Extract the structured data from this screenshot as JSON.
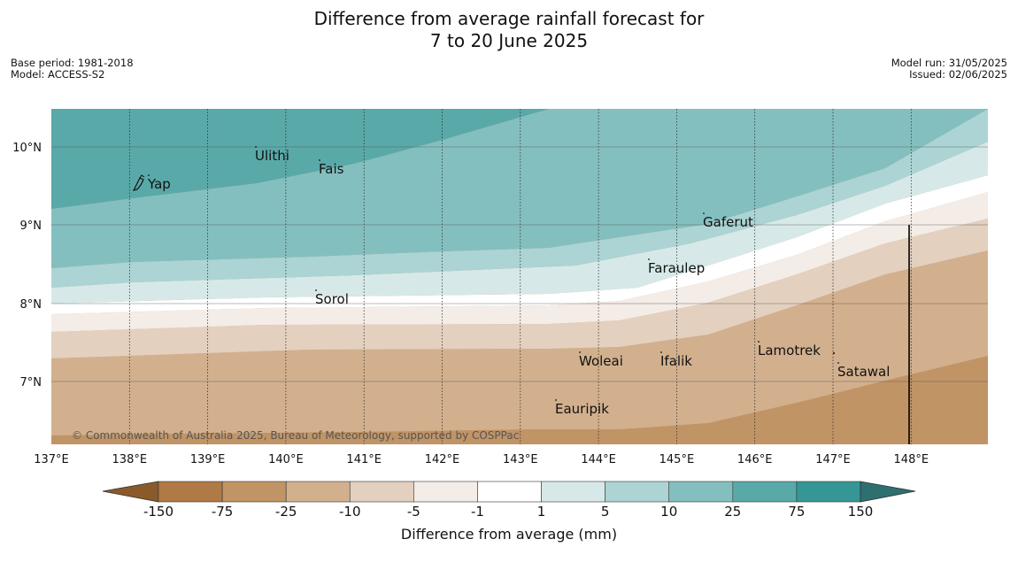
{
  "title": {
    "line1": "Difference from average rainfall forecast for",
    "line2": "7 to 20 June 2025"
  },
  "meta": {
    "base_period": "Base period: 1981-2018",
    "model": "Model: ACCESS-S2",
    "model_run": "Model run: 31/05/2025",
    "issued": "Issued: 02/06/2025"
  },
  "copyright": "© Commonwealth of Australia 2025, Bureau of Meteorology, supported by COSPPac",
  "map": {
    "lon_labels": [
      "137°E",
      "138°E",
      "139°E",
      "140°E",
      "141°E",
      "142°E",
      "143°E",
      "144°E",
      "145°E",
      "146°E",
      "147°E",
      "148°E"
    ],
    "lat_labels": [
      "10°N",
      "9°N",
      "8°N",
      "7°N"
    ],
    "places": [
      {
        "name": "Yap"
      },
      {
        "name": "Ulithi"
      },
      {
        "name": "Fais"
      },
      {
        "name": "Gaferut"
      },
      {
        "name": "Faraulep"
      },
      {
        "name": "Sorol"
      },
      {
        "name": "Lamotrek"
      },
      {
        "name": "Woleai"
      },
      {
        "name": "Ifalik"
      },
      {
        "name": "Satawal"
      },
      {
        "name": "Eauripik"
      }
    ]
  },
  "colorbar": {
    "label": "Difference from average (mm)",
    "ticks": [
      "-150",
      "-75",
      "-25",
      "-10",
      "-5",
      "-1",
      "1",
      "5",
      "10",
      "25",
      "75",
      "150"
    ],
    "colors": [
      "#8b5a2b",
      "#b07a46",
      "#c19466",
      "#d2b08e",
      "#e3d0bf",
      "#f4ece6",
      "#ffffff",
      "#d6e9e8",
      "#acd4d4",
      "#84bfbf",
      "#5aa9a9",
      "#349796",
      "#2e6f70"
    ],
    "colors_note": ""
  }
}
